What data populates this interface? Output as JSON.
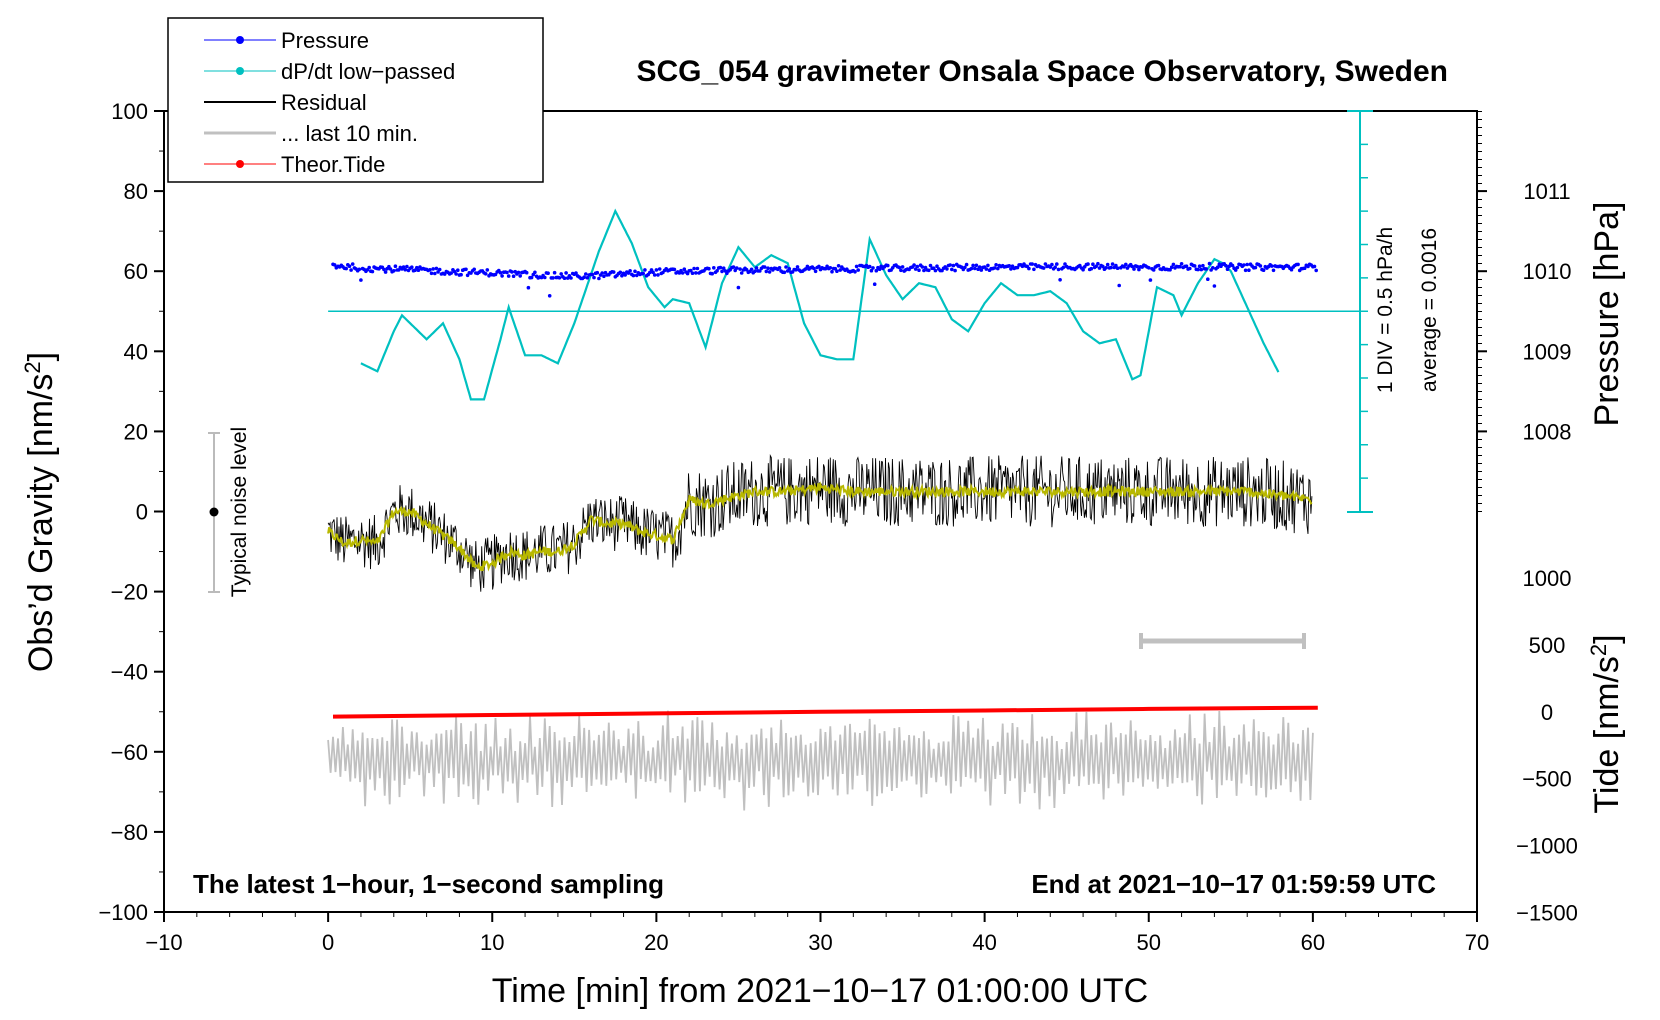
{
  "chart_data": {
    "type": "line",
    "title": "SCG_054 gravimeter Onsala Space Observatory, Sweden",
    "xlabel": "Time [min] from 2021−10−17 01:00:00 UTC",
    "ylabel": "Obs'd Gravity [nm/s²]",
    "ylabel_main": "Obs’d Gravity [nm/s",
    "ylabel_sup": "2",
    "ylabel_close": "]",
    "y2label": "Pressure [hPa]",
    "y3label": "Tide [nm/s²]",
    "y3label_main": "Tide [nm/s",
    "y3label_sup": "2",
    "y3label_close": "]",
    "xlim": [
      -10,
      70
    ],
    "ylim": [
      -100,
      100
    ],
    "x_ticks": [
      "−10",
      "0",
      "10",
      "20",
      "30",
      "40",
      "50",
      "60",
      "70"
    ],
    "y_ticks": [
      "100",
      "80",
      "60",
      "40",
      "20",
      "0",
      "−20",
      "−40",
      "−60",
      "−80",
      "−100"
    ],
    "pressure_ticks": [
      "1011",
      "1010",
      "1009",
      "1008"
    ],
    "tide_ticks": [
      "1000",
      "500",
      "0",
      "−500",
      "−1000",
      "−1500"
    ],
    "legend": [
      "Pressure",
      "dP/dt low−passed",
      "Residual",
      "... last 10 min.",
      "Theor.Tide"
    ],
    "annotations": {
      "noise": "Typical noise level",
      "div": "1 DIV = 0.5 hPa/h",
      "average": "average = 0.0016",
      "bottom_left": "The latest 1−hour, 1−second sampling",
      "bottom_right": "End at 2021−10−17 01:59:59 UTC"
    },
    "series": [
      {
        "name": "Pressure",
        "color": "#0000ff",
        "x": [
          0.3,
          2,
          4,
          6,
          8,
          10,
          12,
          14,
          16,
          18,
          20,
          22,
          24,
          26,
          28,
          30,
          32,
          34,
          36,
          38,
          40,
          42,
          44,
          46,
          48,
          50,
          52,
          54,
          56,
          58,
          60.3
        ],
        "values": [
          61.5,
          60.8,
          60.5,
          60.2,
          59.8,
          59.6,
          59.2,
          58.8,
          58.8,
          59.3,
          59.8,
          60.0,
          60.2,
          60.3,
          60.4,
          60.5,
          60.6,
          60.7,
          60.8,
          60.9,
          61.0,
          61.0,
          61.1,
          61.1,
          61.1,
          61.0,
          61.1,
          61.1,
          61.0,
          61.0,
          61.0
        ]
      },
      {
        "name": "dP/dt low−passed",
        "color": "#00c0c0",
        "x": [
          2,
          3,
          4,
          4.5,
          5,
          6,
          7,
          8,
          8.7,
          9.5,
          10.5,
          11,
          12,
          13,
          14,
          15,
          16.5,
          17.5,
          18.5,
          19.5,
          20.5,
          21,
          22,
          23,
          24,
          25,
          26,
          27,
          28,
          29,
          30,
          31,
          32,
          33,
          34,
          35,
          36,
          37,
          38,
          39,
          40,
          41,
          42,
          43,
          44,
          45,
          46,
          47,
          48,
          49,
          49.5,
          50,
          50.5,
          51.5,
          52,
          53,
          54,
          54.5,
          55,
          56,
          57,
          58
        ],
        "values": [
          37,
          35,
          45,
          49,
          47,
          43,
          47,
          38,
          28,
          28,
          43,
          51,
          39,
          39,
          37,
          47,
          65,
          75,
          67,
          56,
          51,
          53,
          52,
          41,
          57,
          66,
          61,
          64,
          62,
          47,
          39,
          38,
          38,
          68,
          59,
          53,
          57,
          56,
          48,
          45,
          52,
          57,
          54,
          54,
          55,
          52,
          45,
          42,
          43,
          33,
          34,
          45,
          56,
          54,
          49,
          57,
          63,
          62,
          60,
          51,
          42,
          34
        ]
      },
      {
        "name": "Residual",
        "color": "#000000",
        "x": [
          0,
          1,
          2,
          3,
          4,
          5,
          6,
          7,
          8,
          9,
          10,
          11,
          12,
          13,
          14,
          15,
          16,
          17,
          18,
          19,
          20,
          21,
          22,
          23,
          24,
          26,
          28,
          30,
          32,
          34,
          36,
          38,
          40,
          42,
          44,
          46,
          48,
          50,
          52,
          54,
          56,
          58,
          60
        ],
        "values": [
          -5,
          -8,
          -7,
          -8,
          0,
          0,
          -3,
          -6,
          -9,
          -14,
          -13,
          -10,
          -11,
          -10,
          -10,
          -8,
          -2,
          -3,
          -3,
          -5,
          -6,
          -7,
          3,
          2,
          3,
          5,
          5,
          6,
          5,
          5,
          5,
          5,
          5,
          5,
          5,
          5,
          5,
          5,
          5,
          5,
          5,
          4,
          3
        ]
      },
      {
        "name": "... last 10 min.",
        "color": "#c0c0c0",
        "x": [
          50,
          60
        ],
        "values": [
          -33,
          -33
        ]
      },
      {
        "name": "Theor.Tide",
        "color": "#ff0000",
        "x": [
          0.3,
          10,
          20,
          30,
          40,
          50,
          60.3
        ],
        "values": [
          -51.2,
          -50.8,
          -50.4,
          -50.0,
          -49.7,
          -49.3,
          -49.0
        ]
      }
    ]
  }
}
